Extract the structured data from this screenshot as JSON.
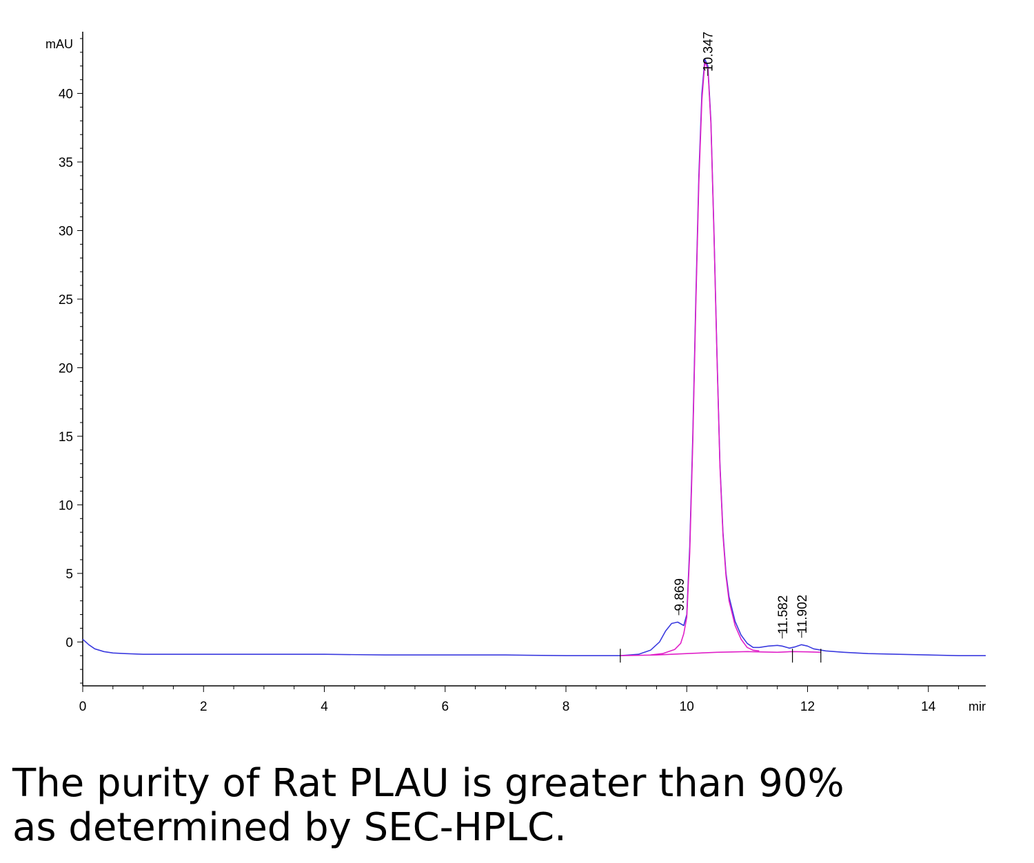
{
  "chart_data": {
    "type": "line",
    "x_unit": "mir",
    "y_unit": "mAU",
    "xlim": [
      0,
      14.95
    ],
    "ylim": [
      -3.2,
      44.5
    ],
    "x_ticks": [
      0,
      2,
      4,
      6,
      8,
      10,
      12,
      14
    ],
    "y_ticks": [
      0,
      5,
      10,
      15,
      20,
      25,
      30,
      35,
      40
    ],
    "series": [
      {
        "role": "signal",
        "color": "#3a3adf",
        "x": [
          0,
          0.1,
          0.2,
          0.35,
          0.5,
          0.7,
          1.0,
          1.5,
          2.0,
          3.0,
          4.0,
          5.0,
          6.0,
          7.0,
          8.0,
          8.9,
          9.2,
          9.4,
          9.55,
          9.65,
          9.75,
          9.85,
          9.95,
          10.0,
          10.05,
          10.1,
          10.15,
          10.2,
          10.25,
          10.3,
          10.35,
          10.4,
          10.45,
          10.5,
          10.55,
          10.6,
          10.65,
          10.7,
          10.8,
          10.9,
          11.0,
          11.1,
          11.2,
          11.35,
          11.5,
          11.58,
          11.7,
          11.8,
          11.9,
          12.0,
          12.1,
          12.3,
          12.6,
          13.0,
          13.5,
          14.0,
          14.5,
          14.95
        ],
        "y": [
          0.2,
          -0.2,
          -0.5,
          -0.7,
          -0.8,
          -0.85,
          -0.9,
          -0.9,
          -0.9,
          -0.9,
          -0.9,
          -0.95,
          -0.95,
          -0.95,
          -1.0,
          -1.0,
          -0.9,
          -0.6,
          0.0,
          0.8,
          1.35,
          1.45,
          1.2,
          2.0,
          7.0,
          15.0,
          25.0,
          34.0,
          40.0,
          42.5,
          42.0,
          38.0,
          30.0,
          21.0,
          13.0,
          8.0,
          5.0,
          3.3,
          1.5,
          0.5,
          -0.1,
          -0.4,
          -0.4,
          -0.3,
          -0.25,
          -0.3,
          -0.45,
          -0.35,
          -0.2,
          -0.3,
          -0.5,
          -0.65,
          -0.75,
          -0.85,
          -0.9,
          -0.95,
          -1.0,
          -1.0
        ]
      },
      {
        "role": "main-peak-fit",
        "color": "#e020c8",
        "x": [
          9.4,
          9.6,
          9.8,
          9.9,
          9.95,
          10.0,
          10.05,
          10.1,
          10.15,
          10.2,
          10.25,
          10.3,
          10.35,
          10.4,
          10.45,
          10.5,
          10.55,
          10.6,
          10.65,
          10.7,
          10.8,
          10.9,
          11.0,
          11.1,
          11.2
        ],
        "y": [
          -0.95,
          -0.85,
          -0.55,
          -0.1,
          0.6,
          1.8,
          6.5,
          14.5,
          24.5,
          33.5,
          39.5,
          42.3,
          41.8,
          37.8,
          29.8,
          20.8,
          12.8,
          7.8,
          4.8,
          3.0,
          1.2,
          0.2,
          -0.4,
          -0.6,
          -0.65
        ]
      },
      {
        "role": "baseline",
        "color": "#e020c8",
        "x": [
          8.9,
          9.5,
          10.0,
          10.5,
          11.0,
          11.5,
          11.75,
          12.0,
          12.22
        ],
        "y": [
          -1.0,
          -0.95,
          -0.85,
          -0.75,
          -0.7,
          -0.75,
          -0.7,
          -0.72,
          -0.75
        ]
      }
    ],
    "baseline_markers_x": [
      8.9,
      11.75,
      12.22
    ],
    "peaks": [
      {
        "label": "9.869",
        "x": 9.869,
        "y": 1.45
      },
      {
        "label": "10.347",
        "x": 10.347,
        "y": 42.5
      },
      {
        "label": "11.582",
        "x": 11.582,
        "y": -0.25
      },
      {
        "label": "11.902",
        "x": 11.902,
        "y": -0.2
      }
    ]
  },
  "caption": {
    "line1": "The purity of Rat PLAU is greater than 90%",
    "line2": "as determined by SEC-HPLC."
  }
}
